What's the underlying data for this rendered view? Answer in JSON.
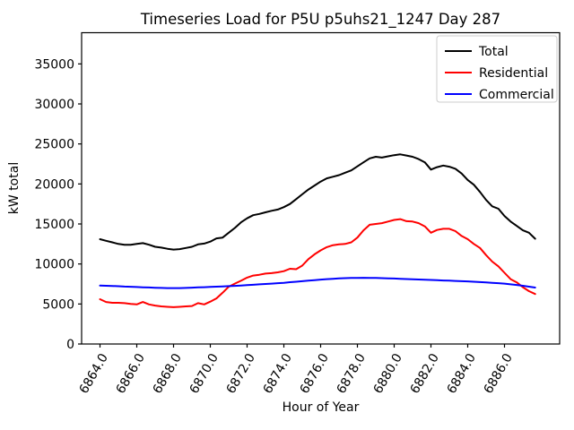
{
  "figure": {
    "background": "#ffffff"
  },
  "chart_data": {
    "type": "line",
    "title": "Timeseries Load for P5U p5uhs21_1247  Day 287",
    "xlabel": "Hour of Year",
    "ylabel": "kW total",
    "xlim": [
      6863.0,
      6889.0
    ],
    "ylim": [
      0,
      38900
    ],
    "xticks": [
      6864,
      6866,
      6868,
      6870,
      6872,
      6874,
      6876,
      6878,
      6880,
      6882,
      6884,
      6886
    ],
    "xtick_decimals": 1,
    "yticks": [
      0,
      5000,
      10000,
      15000,
      20000,
      25000,
      30000,
      35000
    ],
    "grid": false,
    "legend_position": "upper right",
    "legend_labels": [
      "Total",
      "Residential",
      "Commercial"
    ],
    "x": [
      6864,
      6864.33,
      6864.67,
      6865,
      6865.33,
      6865.67,
      6866,
      6866.33,
      6866.67,
      6867,
      6867.33,
      6867.67,
      6868,
      6868.33,
      6868.67,
      6869,
      6869.33,
      6869.67,
      6870,
      6870.33,
      6870.67,
      6871,
      6871.33,
      6871.67,
      6872,
      6872.33,
      6872.67,
      6873,
      6873.33,
      6873.67,
      6874,
      6874.33,
      6874.67,
      6875,
      6875.33,
      6875.67,
      6876,
      6876.33,
      6876.67,
      6877,
      6877.33,
      6877.67,
      6878,
      6878.33,
      6878.67,
      6879,
      6879.33,
      6879.67,
      6880,
      6880.33,
      6880.67,
      6881,
      6881.33,
      6881.67,
      6882,
      6882.33,
      6882.67,
      6883,
      6883.33,
      6883.67,
      6884,
      6884.33,
      6884.67,
      6885,
      6885.33,
      6885.67,
      6886,
      6886.33,
      6886.67,
      6887,
      6887.33,
      6887.67
    ],
    "series": [
      {
        "name": "Total",
        "color": "#000000",
        "values": [
          13100,
          12900,
          12700,
          12500,
          12400,
          12400,
          12500,
          12600,
          12400,
          12150,
          12050,
          11900,
          11800,
          11850,
          12000,
          12150,
          12450,
          12550,
          12800,
          13200,
          13300,
          13900,
          14500,
          15200,
          15700,
          16100,
          16250,
          16450,
          16650,
          16800,
          17100,
          17500,
          18100,
          18700,
          19300,
          19800,
          20300,
          20700,
          20900,
          21100,
          21400,
          21700,
          22200,
          22700,
          23200,
          23400,
          23300,
          23450,
          23600,
          23700,
          23550,
          23400,
          23100,
          22700,
          21800,
          22100,
          22300,
          22150,
          21900,
          21300,
          20500,
          19900,
          19000,
          18000,
          17200,
          16900,
          16000,
          15300,
          14750,
          14200,
          13900,
          13150
        ]
      },
      {
        "name": "Residential",
        "color": "#ff0000",
        "values": [
          5600,
          5250,
          5150,
          5150,
          5100,
          5000,
          4950,
          5250,
          4950,
          4800,
          4700,
          4650,
          4600,
          4650,
          4700,
          4750,
          5100,
          4950,
          5300,
          5700,
          6400,
          7150,
          7550,
          7900,
          8300,
          8550,
          8650,
          8800,
          8850,
          8950,
          9100,
          9400,
          9350,
          9800,
          10600,
          11200,
          11700,
          12100,
          12350,
          12450,
          12500,
          12700,
          13300,
          14200,
          14900,
          15000,
          15100,
          15300,
          15500,
          15600,
          15350,
          15300,
          15100,
          14700,
          13900,
          14250,
          14400,
          14400,
          14100,
          13500,
          13100,
          12500,
          12000,
          11100,
          10300,
          9700,
          8900,
          8100,
          7700,
          7100,
          6600,
          6250
        ]
      },
      {
        "name": "Commercial",
        "color": "#0000ff",
        "values": [
          7300,
          7280,
          7250,
          7220,
          7180,
          7150,
          7120,
          7090,
          7060,
          7030,
          7010,
          6990,
          6980,
          6990,
          7010,
          7040,
          7070,
          7100,
          7130,
          7160,
          7200,
          7230,
          7270,
          7310,
          7350,
          7400,
          7450,
          7500,
          7550,
          7600,
          7650,
          7720,
          7780,
          7850,
          7920,
          7980,
          8050,
          8100,
          8150,
          8200,
          8230,
          8250,
          8260,
          8270,
          8260,
          8250,
          8230,
          8200,
          8180,
          8150,
          8120,
          8090,
          8060,
          8030,
          8000,
          7970,
          7940,
          7910,
          7880,
          7850,
          7820,
          7780,
          7740,
          7700,
          7650,
          7600,
          7540,
          7460,
          7380,
          7280,
          7160,
          7050
        ]
      }
    ],
    "legend_border_color": "#cccccc"
  }
}
